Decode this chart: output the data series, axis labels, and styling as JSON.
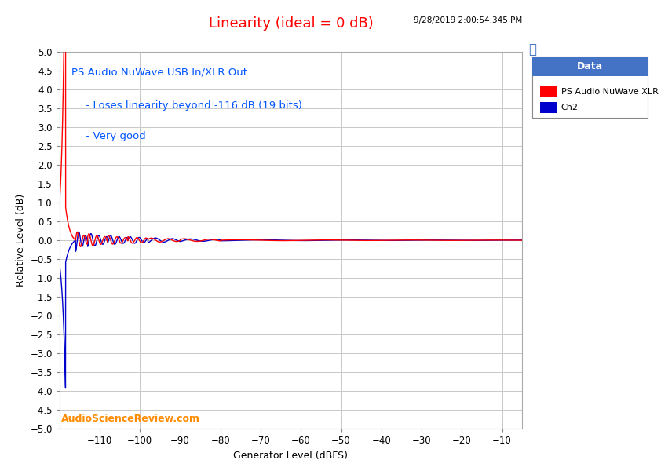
{
  "title": "Linearity (ideal = 0 dB)",
  "title_color": "#FF0000",
  "xlabel": "Generator Level (dBFS)",
  "ylabel": "Relative Level (dB)",
  "xlim": [
    -120,
    -5
  ],
  "ylim": [
    -5.0,
    5.0
  ],
  "xticks": [
    -110,
    -100,
    -90,
    -80,
    -70,
    -60,
    -50,
    -40,
    -30,
    -20,
    -10
  ],
  "yticks": [
    -5.0,
    -4.5,
    -4.0,
    -3.5,
    -3.0,
    -2.5,
    -2.0,
    -1.5,
    -1.0,
    -0.5,
    0.0,
    0.5,
    1.0,
    1.5,
    2.0,
    2.5,
    3.0,
    3.5,
    4.0,
    4.5,
    5.0
  ],
  "background_color": "#FFFFFF",
  "plot_bg_color": "#FFFFFF",
  "grid_color": "#C8C8C8",
  "annotation_line1": "PS Audio NuWave USB In/XLR Out",
  "annotation_line2": "  - Loses linearity beyond -116 dB (19 bits)",
  "annotation_line3": "  - Very good",
  "annotation_color": "#0055FF",
  "timestamp": "9/28/2019 2:00:54.345 PM",
  "watermark": "AudioScienceReview.com",
  "watermark_color": "#FF8C00",
  "legend_title": "Data",
  "legend_title_bg": "#4472C4",
  "legend_entries": [
    "PS Audio NuWave XLR",
    "Ch2"
  ],
  "ch1_color": "#FF0000",
  "ch2_color": "#0000CC",
  "line_width": 1.0
}
